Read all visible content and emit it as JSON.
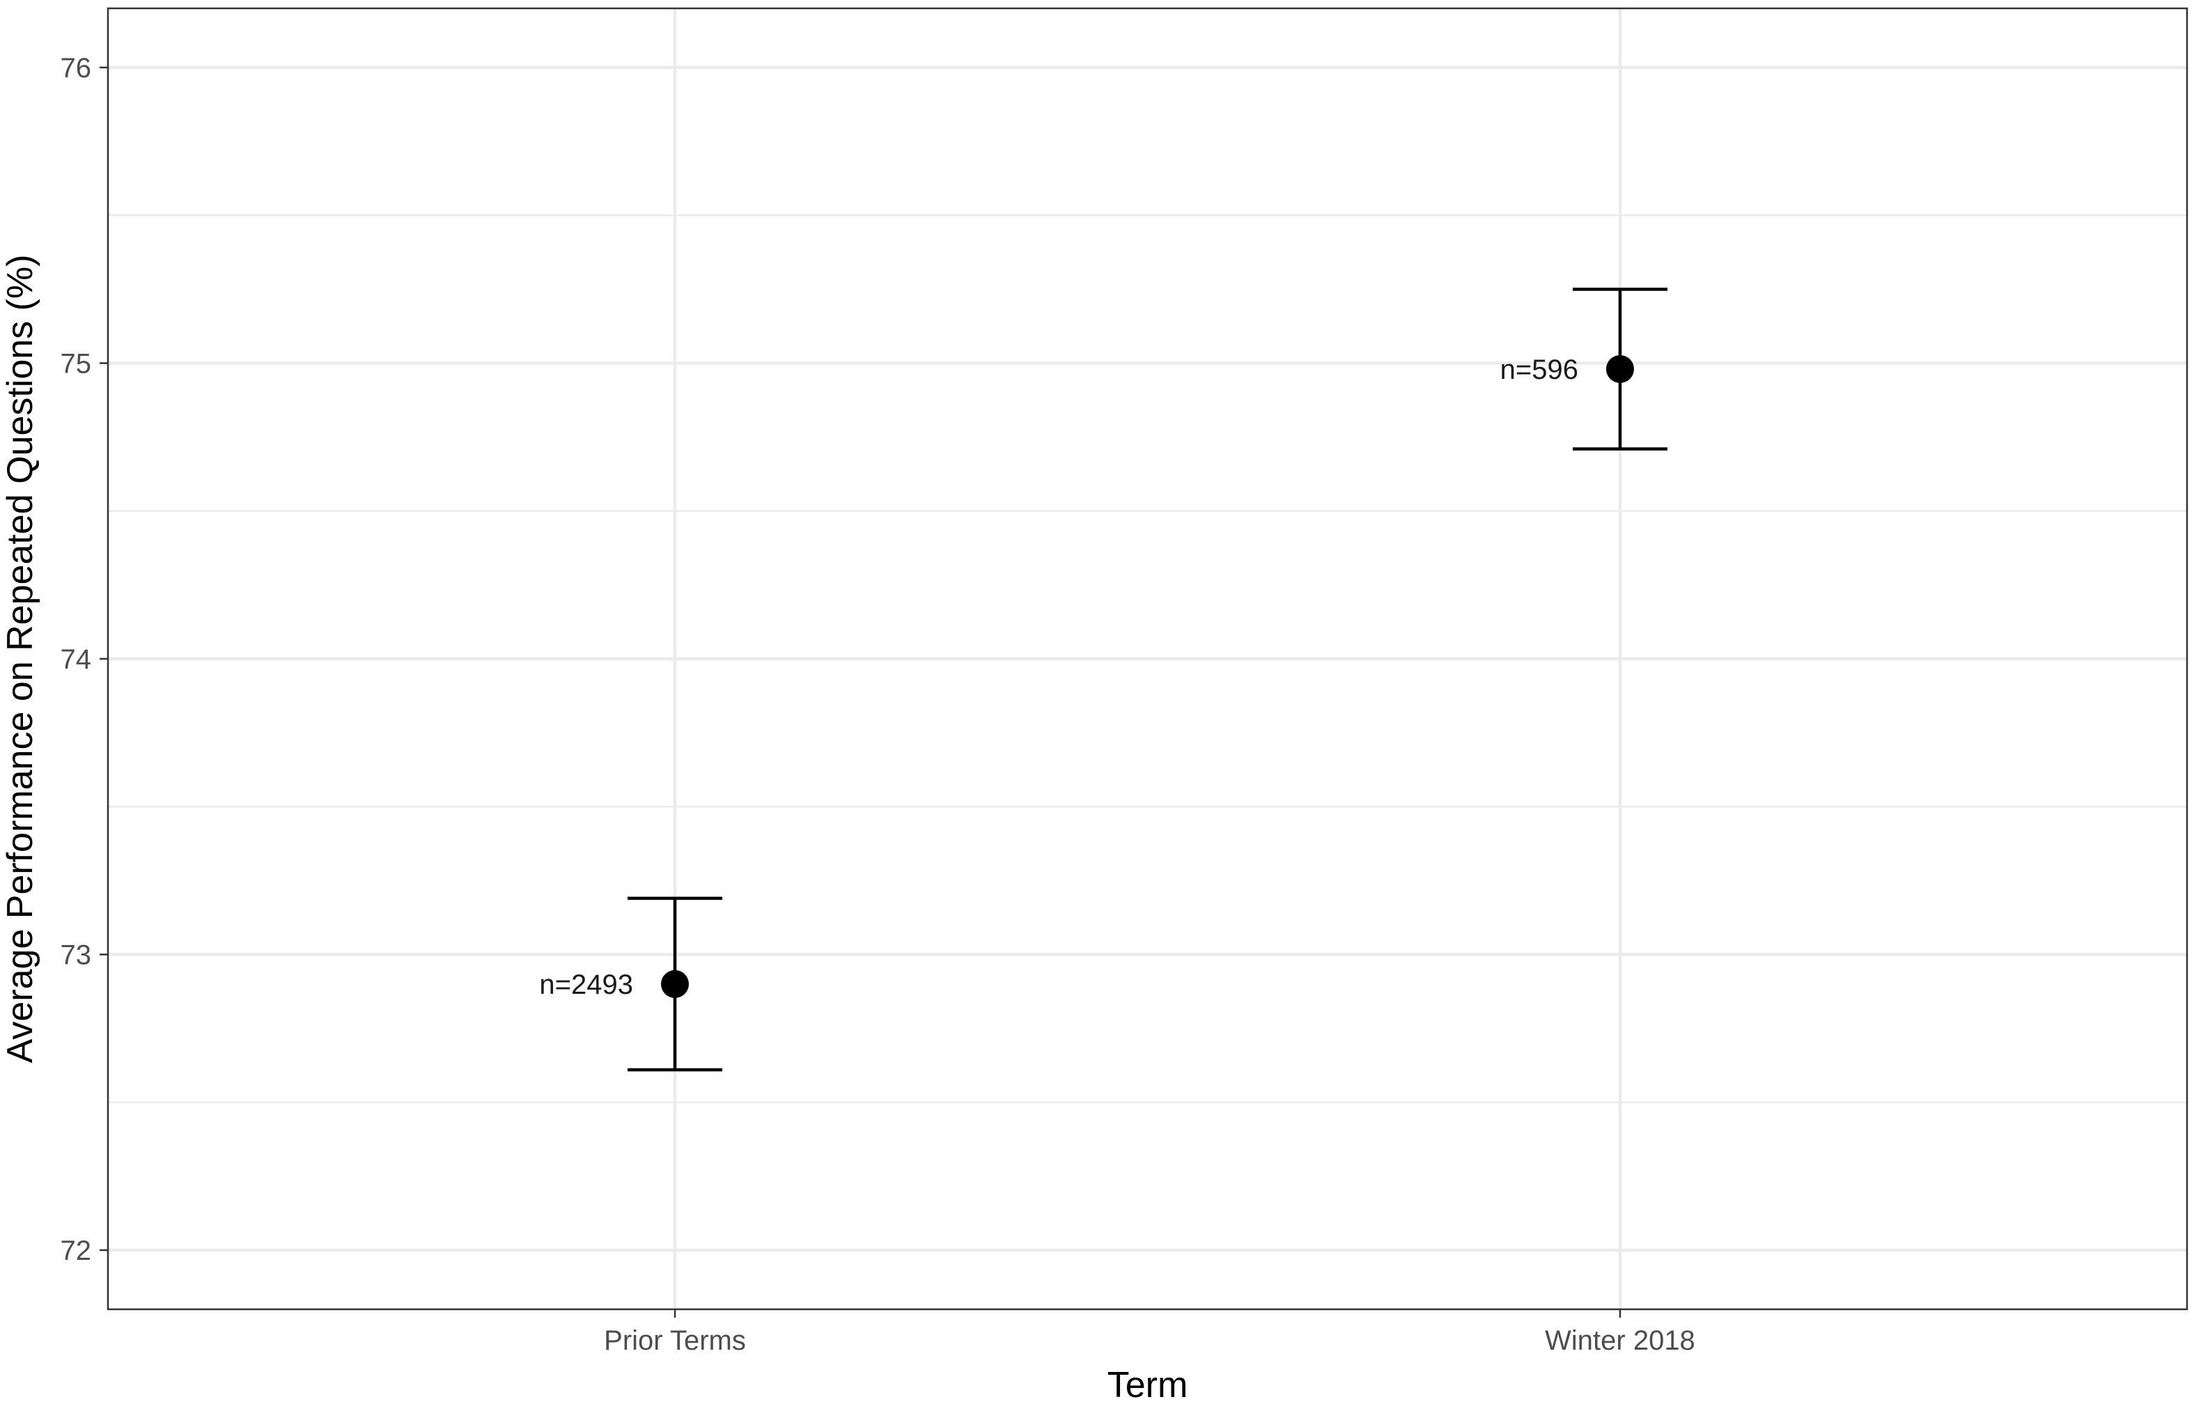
{
  "chart_data": {
    "type": "scatter",
    "title": "",
    "xlabel": "Term",
    "ylabel": "Average Performance on Repeated Questions (%)",
    "categories": [
      "Prior Terms",
      "Winter 2018"
    ],
    "points": [
      {
        "category": "Prior Terms",
        "mean": 72.9,
        "ci_low": 72.61,
        "ci_high": 73.19,
        "label": "n=2493"
      },
      {
        "category": "Winter 2018",
        "mean": 74.98,
        "ci_low": 74.71,
        "ci_high": 75.25,
        "label": "n=596"
      }
    ],
    "yticks": [
      "72",
      "73",
      "74",
      "75",
      "76"
    ],
    "ylim": [
      71.8,
      76.2
    ],
    "grid": true,
    "legend": "none",
    "colors": {
      "point": "#000000",
      "grid": "#ebebeb",
      "panel_border": "#333333"
    }
  }
}
